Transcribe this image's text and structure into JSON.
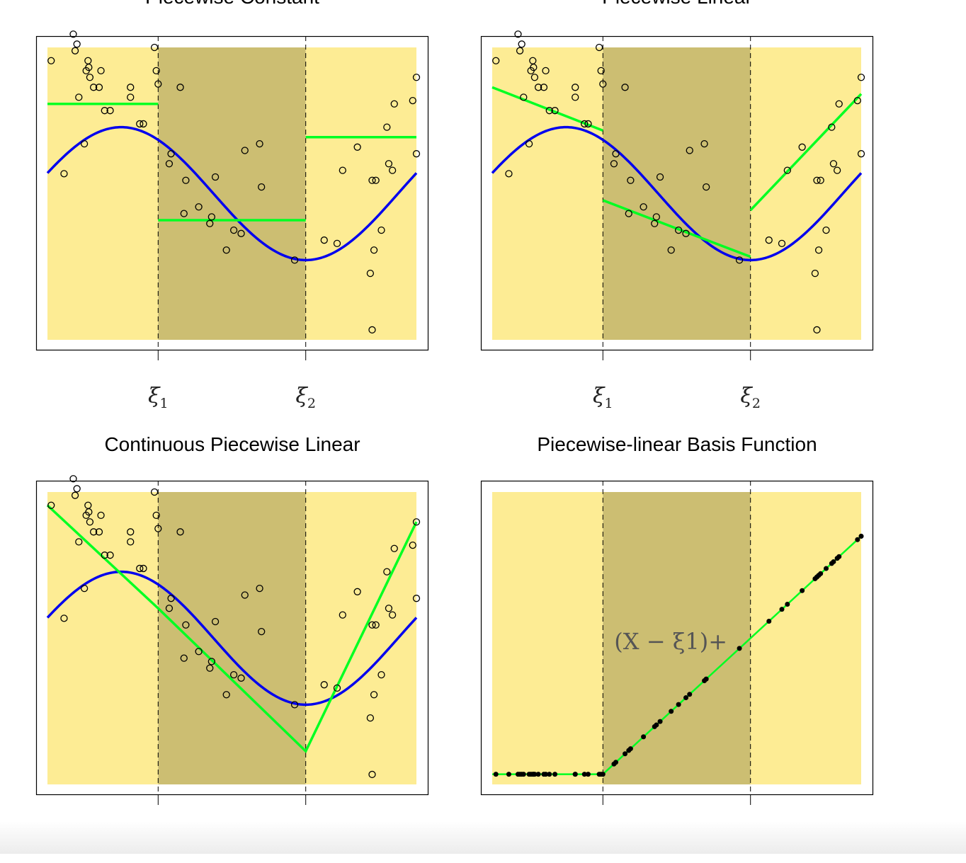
{
  "colors": {
    "outer_region": "#FDEC94",
    "middle_region": "#CCBE72",
    "true_function": "#0000EE",
    "fit": "#00FF22",
    "points": "#000000",
    "knot_line": "#000000",
    "frame": "#000000"
  },
  "knot_labels": [
    "ξ1",
    "ξ2"
  ],
  "chart_data": [
    {
      "type": "scatter",
      "title": "Piecewise Constant",
      "xlim": [
        0,
        1
      ],
      "ylim": [
        -2.2,
        2.2
      ],
      "knots": [
        0.3,
        0.7
      ],
      "knot_labels": [
        "ξ1",
        "ξ2"
      ],
      "points_style": "open-circle",
      "true_curve": "sin(2π(x + 0.05))",
      "fit_type": "piecewise-constant",
      "fit_segments": [
        {
          "x": [
            0,
            0.3
          ],
          "y": [
            1.35,
            1.35
          ]
        },
        {
          "x": [
            0.3,
            0.7
          ],
          "y": [
            -0.4,
            -0.4
          ]
        },
        {
          "x": [
            0.7,
            1
          ],
          "y": [
            0.85,
            0.85
          ]
        }
      ],
      "points": {
        "x": [
          0.01,
          0.045,
          0.07,
          0.075,
          0.08,
          0.085,
          0.1,
          0.105,
          0.11,
          0.112,
          0.115,
          0.125,
          0.14,
          0.145,
          0.155,
          0.17,
          0.225,
          0.225,
          0.25,
          0.26,
          0.29,
          0.295,
          0.3,
          0.33,
          0.335,
          0.36,
          0.37,
          0.375,
          0.41,
          0.44,
          0.445,
          0.455,
          0.485,
          0.505,
          0.525,
          0.535,
          0.575,
          0.58,
          0.67,
          0.75,
          0.785,
          0.8,
          0.84,
          0.875,
          0.88,
          0.88,
          0.885,
          0.89,
          0.905,
          0.92,
          0.925,
          0.935,
          0.94,
          0.99,
          1.0,
          1.0
        ],
        "y": [
          2.0,
          0.3,
          2.4,
          2.15,
          2.25,
          1.45,
          0.75,
          1.85,
          2.0,
          1.9,
          1.75,
          1.6,
          1.6,
          1.85,
          1.25,
          1.25,
          1.45,
          1.6,
          1.05,
          1.05,
          2.2,
          1.85,
          1.65,
          0.45,
          0.6,
          1.6,
          -0.3,
          0.2,
          -0.2,
          -0.45,
          -0.35,
          0.25,
          -0.85,
          -0.55,
          -0.6,
          0.65,
          0.75,
          0.1,
          -1.0,
          -0.7,
          -0.75,
          0.35,
          0.7,
          -1.2,
          -2.05,
          0.2,
          -0.85,
          0.2,
          -0.55,
          1.0,
          0.45,
          0.35,
          1.35,
          1.4,
          1.75,
          0.6
        ]
      }
    },
    {
      "type": "scatter",
      "title": "Piecewise Linear",
      "xlim": [
        0,
        1
      ],
      "ylim": [
        -2.2,
        2.2
      ],
      "knots": [
        0.3,
        0.7
      ],
      "knot_labels": [
        "ξ1",
        "ξ2"
      ],
      "points_style": "open-circle",
      "true_curve": "sin(2π(x + 0.05))",
      "fit_type": "piecewise-linear",
      "fit_segments": [
        {
          "x": [
            0,
            0.3
          ],
          "y": [
            1.6,
            0.95
          ]
        },
        {
          "x": [
            0.3,
            0.7
          ],
          "y": [
            -0.1,
            -0.95
          ]
        },
        {
          "x": [
            0.7,
            1
          ],
          "y": [
            -0.25,
            1.5
          ]
        }
      ],
      "points": {
        "x": [
          0.01,
          0.045,
          0.07,
          0.075,
          0.08,
          0.085,
          0.1,
          0.105,
          0.11,
          0.112,
          0.115,
          0.125,
          0.14,
          0.145,
          0.155,
          0.17,
          0.225,
          0.225,
          0.25,
          0.26,
          0.29,
          0.295,
          0.3,
          0.33,
          0.335,
          0.36,
          0.37,
          0.375,
          0.41,
          0.44,
          0.445,
          0.455,
          0.485,
          0.505,
          0.525,
          0.535,
          0.575,
          0.58,
          0.67,
          0.75,
          0.785,
          0.8,
          0.84,
          0.875,
          0.88,
          0.88,
          0.885,
          0.89,
          0.905,
          0.92,
          0.925,
          0.935,
          0.94,
          0.99,
          1.0,
          1.0
        ],
        "y": [
          2.0,
          0.3,
          2.4,
          2.15,
          2.25,
          1.45,
          0.75,
          1.85,
          2.0,
          1.9,
          1.75,
          1.6,
          1.6,
          1.85,
          1.25,
          1.25,
          1.45,
          1.6,
          1.05,
          1.05,
          2.2,
          1.85,
          1.65,
          0.45,
          0.6,
          1.6,
          -0.3,
          0.2,
          -0.2,
          -0.45,
          -0.35,
          0.25,
          -0.85,
          -0.55,
          -0.6,
          0.65,
          0.75,
          0.1,
          -1.0,
          -0.7,
          -0.75,
          0.35,
          0.7,
          -1.2,
          -2.05,
          0.2,
          -0.85,
          0.2,
          -0.55,
          1.0,
          0.45,
          0.35,
          1.35,
          1.4,
          1.75,
          0.6
        ]
      }
    },
    {
      "type": "scatter",
      "title": "Continuous Piecewise Linear",
      "xlim": [
        0,
        1
      ],
      "ylim": [
        -2.2,
        2.2
      ],
      "knots": [
        0.3,
        0.7
      ],
      "knot_labels": [
        "ξ1",
        "ξ2"
      ],
      "points_style": "open-circle",
      "true_curve": "sin(2π(x + 0.05))",
      "fit_type": "continuous-piecewise-linear",
      "fit_segments": [
        {
          "x": [
            0,
            0.3,
            0.7,
            1
          ],
          "y": [
            2.0,
            0.45,
            -1.7,
            1.75
          ]
        }
      ],
      "points": {
        "x": [
          0.01,
          0.045,
          0.07,
          0.075,
          0.08,
          0.085,
          0.1,
          0.105,
          0.11,
          0.112,
          0.115,
          0.125,
          0.14,
          0.145,
          0.155,
          0.17,
          0.225,
          0.225,
          0.25,
          0.26,
          0.29,
          0.295,
          0.3,
          0.33,
          0.335,
          0.36,
          0.37,
          0.375,
          0.41,
          0.44,
          0.445,
          0.455,
          0.485,
          0.505,
          0.525,
          0.535,
          0.575,
          0.58,
          0.67,
          0.75,
          0.785,
          0.8,
          0.84,
          0.875,
          0.88,
          0.88,
          0.885,
          0.89,
          0.905,
          0.92,
          0.925,
          0.935,
          0.94,
          0.99,
          1.0,
          1.0
        ],
        "y": [
          2.0,
          0.3,
          2.4,
          2.15,
          2.25,
          1.45,
          0.75,
          1.85,
          2.0,
          1.9,
          1.75,
          1.6,
          1.6,
          1.85,
          1.25,
          1.25,
          1.45,
          1.6,
          1.05,
          1.05,
          2.2,
          1.85,
          1.65,
          0.45,
          0.6,
          1.6,
          -0.3,
          0.2,
          -0.2,
          -0.45,
          -0.35,
          0.25,
          -0.85,
          -0.55,
          -0.6,
          0.65,
          0.75,
          0.1,
          -1.0,
          -0.7,
          -0.75,
          0.35,
          0.7,
          -1.2,
          -2.05,
          0.2,
          -0.85,
          0.2,
          -0.55,
          1.0,
          0.45,
          0.35,
          1.35,
          1.4,
          1.75,
          0.6
        ]
      }
    },
    {
      "type": "scatter",
      "title": "Piecewise-linear Basis Function",
      "xlim": [
        0,
        1
      ],
      "ylim": [
        -0.03,
        0.83
      ],
      "knots": [
        0.3,
        0.7
      ],
      "knot_labels": [
        "ξ1",
        "ξ2"
      ],
      "annotation": "(X − ξ1)+",
      "points_style": "filled-dot",
      "fit_type": "basis (x - ξ1)+",
      "fit_segments": [
        {
          "x": [
            0,
            0.3,
            1
          ],
          "y": [
            0,
            0,
            0.7
          ]
        }
      ],
      "points": {
        "x": [
          0.01,
          0.045,
          0.07,
          0.075,
          0.08,
          0.085,
          0.1,
          0.105,
          0.11,
          0.112,
          0.115,
          0.125,
          0.14,
          0.145,
          0.155,
          0.17,
          0.225,
          0.225,
          0.25,
          0.26,
          0.29,
          0.295,
          0.3,
          0.33,
          0.335,
          0.36,
          0.37,
          0.375,
          0.41,
          0.44,
          0.445,
          0.455,
          0.485,
          0.505,
          0.525,
          0.535,
          0.575,
          0.58,
          0.67,
          0.75,
          0.785,
          0.8,
          0.84,
          0.875,
          0.88,
          0.88,
          0.885,
          0.89,
          0.905,
          0.92,
          0.925,
          0.935,
          0.94,
          0.99,
          1.0,
          1.0
        ],
        "y": [
          0,
          0,
          0,
          0,
          0,
          0,
          0,
          0,
          0,
          0,
          0,
          0,
          0,
          0,
          0,
          0,
          0,
          0,
          0,
          0,
          0,
          0,
          0,
          0.03,
          0.035,
          0.06,
          0.07,
          0.075,
          0.11,
          0.14,
          0.145,
          0.155,
          0.185,
          0.205,
          0.225,
          0.235,
          0.275,
          0.28,
          0.37,
          0.45,
          0.485,
          0.5,
          0.54,
          0.575,
          0.58,
          0.58,
          0.585,
          0.59,
          0.605,
          0.62,
          0.625,
          0.635,
          0.64,
          0.69,
          0.7,
          0.7
        ]
      }
    }
  ]
}
